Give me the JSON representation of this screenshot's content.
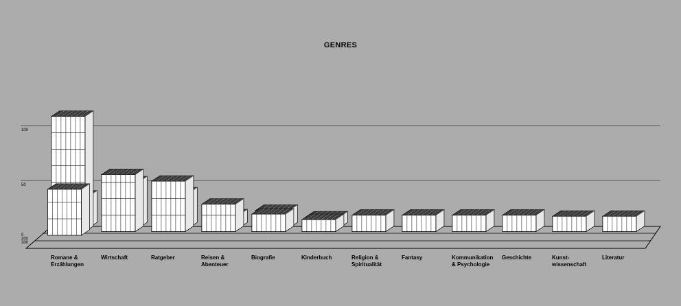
{
  "chart_data": {
    "type": "bar",
    "title": "GENRES",
    "xlabel": "",
    "ylabel": "",
    "gridlines": [
      {
        "value": 100,
        "label": "100"
      },
      {
        "value": 50,
        "label": "50"
      }
    ],
    "depth_ticks": [
      "0",
      "200",
      "300"
    ],
    "ylim": [
      0,
      100
    ],
    "grid": true,
    "categories": [
      "Romane & Erzählungen",
      "Wirtschaft",
      "Ratgeber",
      "Reisen & Abenteuer",
      "Biografie",
      "Kinderbuch",
      "Religion & Spiritualität",
      "Fantasy",
      "Kommunikation & Psychologie",
      "Geschichte",
      "Kunst- wissenschaft",
      "Literatur"
    ],
    "category_label_lines": [
      [
        "Romane &",
        "Erzählungen"
      ],
      [
        "Wirtschaft"
      ],
      [
        "Ratgeber"
      ],
      [
        "Reisen &",
        "Abenteuer"
      ],
      [
        "Biografie"
      ],
      [
        "Kinderbuch"
      ],
      [
        "Religion &",
        "Spiritualität"
      ],
      [
        "Fantasy"
      ],
      [
        "Kommunikation",
        "& Psychologie"
      ],
      [
        "Geschichte"
      ],
      [
        "Kunst-",
        "wissenschaft"
      ],
      [
        "Literatur"
      ]
    ],
    "series": [
      {
        "values": [
          42,
          0,
          0,
          0,
          0,
          0,
          0,
          0,
          0,
          0,
          0,
          0
        ]
      },
      {
        "values": [
          105,
          52,
          46,
          25,
          16,
          11,
          15,
          15,
          15,
          15,
          14,
          14
        ]
      },
      {
        "values": [
          29,
          42,
          32,
          12,
          16,
          10,
          0,
          0,
          0,
          0,
          0,
          0
        ]
      }
    ],
    "colors": {
      "background": "#acacac",
      "book_face": "#ffffff",
      "book_top": "#3c3c3c",
      "outline": "#000000"
    }
  }
}
